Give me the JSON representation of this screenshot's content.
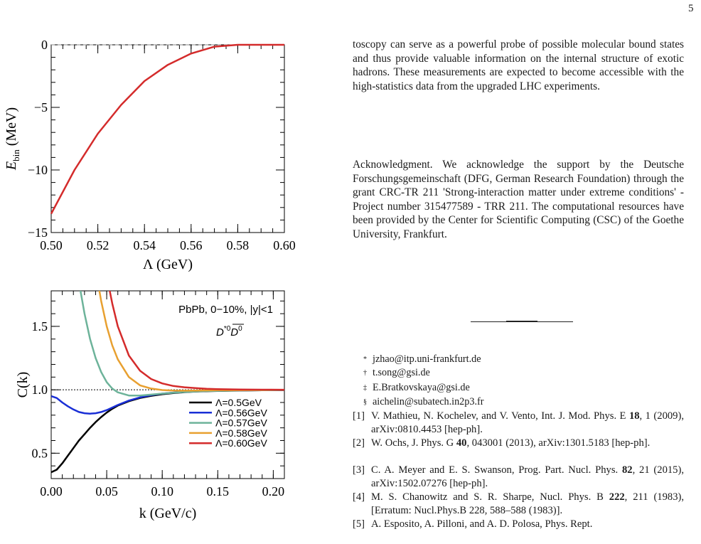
{
  "page_number": "5",
  "chart_data": [
    {
      "type": "line",
      "x": [
        0.5,
        0.51,
        0.52,
        0.53,
        0.54,
        0.55,
        0.56,
        0.57,
        0.58,
        0.59,
        0.6
      ],
      "series": [
        {
          "values": [
            -13.5,
            -10.0,
            -7.1,
            -4.8,
            -2.9,
            -1.6,
            -0.7,
            -0.15,
            0.0,
            0.0,
            0.0
          ],
          "color": "#d42b2b"
        }
      ],
      "reference_line": 0,
      "xlabel": "Λ (GeV)",
      "ylabel": "E_bin (MeV)",
      "xlim": [
        0.5,
        0.6
      ],
      "ylim": [
        -15,
        0
      ],
      "x_ticks": [
        "0.50",
        "0.52",
        "0.54",
        "0.56",
        "0.58",
        "0.60"
      ],
      "y_ticks": [
        "0",
        "−5",
        "−10",
        "−15"
      ]
    },
    {
      "type": "line",
      "annotation": "PbPb, 0−10%, |y|<1",
      "xlabel": "k (GeV/c)",
      "ylabel": "C(k)",
      "xlim": [
        0.0,
        0.21
      ],
      "ylim": [
        0.3,
        1.78
      ],
      "x_ticks": [
        "0.00",
        "0.05",
        "0.10",
        "0.15",
        "0.20"
      ],
      "y_ticks": [
        "0.5",
        "1.0",
        "1.5"
      ],
      "reference_line": 1.0,
      "legend_position": "bottom-right",
      "x": [
        0.0,
        0.005,
        0.01,
        0.015,
        0.02,
        0.025,
        0.03,
        0.035,
        0.04,
        0.045,
        0.05,
        0.055,
        0.06,
        0.07,
        0.08,
        0.09,
        0.1,
        0.11,
        0.12,
        0.13,
        0.14,
        0.15,
        0.17,
        0.19,
        0.21
      ],
      "series": [
        {
          "name": "Λ=0.5GeV",
          "color": "#000000",
          "values": [
            0.35,
            0.37,
            0.42,
            0.48,
            0.54,
            0.6,
            0.65,
            0.7,
            0.745,
            0.785,
            0.82,
            0.85,
            0.875,
            0.91,
            0.935,
            0.952,
            0.965,
            0.974,
            0.981,
            0.986,
            0.989,
            0.991,
            0.994,
            0.996,
            0.997
          ]
        },
        {
          "name": "Λ=0.56GeV",
          "color": "#1a2fd6",
          "values": [
            0.95,
            0.935,
            0.9,
            0.87,
            0.845,
            0.825,
            0.815,
            0.812,
            0.815,
            0.825,
            0.84,
            0.86,
            0.88,
            0.915,
            0.94,
            0.958,
            0.97,
            0.978,
            0.984,
            0.988,
            0.991,
            0.993,
            0.995,
            0.997,
            0.998
          ]
        },
        {
          "name": "Λ=0.57GeV",
          "color": "#6db39a",
          "values": [
            null,
            null,
            null,
            null,
            2.1,
            1.85,
            1.6,
            1.4,
            1.25,
            1.14,
            1.06,
            1.01,
            0.98,
            0.955,
            0.955,
            0.962,
            0.97,
            0.977,
            0.983,
            0.987,
            0.99,
            0.992,
            0.995,
            0.997,
            0.998
          ]
        },
        {
          "name": "Λ=0.58GeV",
          "color": "#e8a030",
          "values": [
            null,
            null,
            null,
            null,
            null,
            null,
            null,
            2.3,
            1.95,
            1.7,
            1.5,
            1.35,
            1.24,
            1.1,
            1.035,
            1.01,
            0.998,
            0.994,
            0.993,
            0.994,
            0.995,
            0.996,
            0.997,
            0.998,
            0.999
          ]
        },
        {
          "name": "Λ=0.60GeV",
          "color": "#d42b2b",
          "values": [
            null,
            null,
            null,
            null,
            null,
            null,
            null,
            null,
            null,
            2.2,
            1.9,
            1.68,
            1.5,
            1.27,
            1.15,
            1.085,
            1.05,
            1.03,
            1.02,
            1.013,
            1.008,
            1.005,
            1.002,
            1.001,
            1.0
          ]
        }
      ]
    }
  ],
  "text": {
    "para1": "toscopy can serve as a powerful probe of possible molecular bound states and thus provide valuable information on the internal structure of exotic hadrons. These measurements are expected to become accessible with the high-statistics data from the upgraded LHC experiments.",
    "para2": "Acknowledgment. We acknowledge the support by the Deutsche Forschungsgemeinschaft (DFG, German Research Foundation) through the grant CRC-TR 211 'Strong-interaction matter under extreme conditions' - Project number 315477589 - TRR 211. The computational resources have been provided by the Center for Scientific Computing (CSC) of the Goethe University, Frankfurt."
  },
  "footnotes": [
    {
      "mark": "*",
      "text": "jzhao@itp.uni-frankfurt.de"
    },
    {
      "mark": "†",
      "text": "t.song@gsi.de"
    },
    {
      "mark": "‡",
      "text": "E.Bratkovskaya@gsi.de"
    },
    {
      "mark": "§",
      "text": "aichelin@subatech.in2p3.fr"
    }
  ],
  "references": [
    {
      "num": "[1]",
      "a": "V. Mathieu, N. Kochelev, and V. Vento, Int. J. Mod. Phys. E ",
      "b": "18",
      "c": ", 1 (2009), arXiv:0810.4453 [hep-ph]."
    },
    {
      "num": "[2]",
      "a": "W. Ochs, J. Phys. G ",
      "b": "40",
      "c": ", 043001 (2013), arXiv:1301.5183 [hep-ph]."
    },
    {
      "num": "[3]",
      "a": "C. A. Meyer and E. S. Swanson, Prog. Part. Nucl. Phys. ",
      "b": "82",
      "c": ", 21 (2015), arXiv:1502.07276 [hep-ph]."
    },
    {
      "num": "[4]",
      "a": "M. S. Chanowitz and S. R. Sharpe, Nucl. Phys. B ",
      "b": "222",
      "c": ", 211 (1983), [Erratum: Nucl.Phys.B 228, 588–588 (1983)]."
    },
    {
      "num": "[5]",
      "a": "A. Esposito, A. Pilloni, and A. D. Polosa, Phys. Rept.",
      "b": "",
      "c": ""
    }
  ]
}
